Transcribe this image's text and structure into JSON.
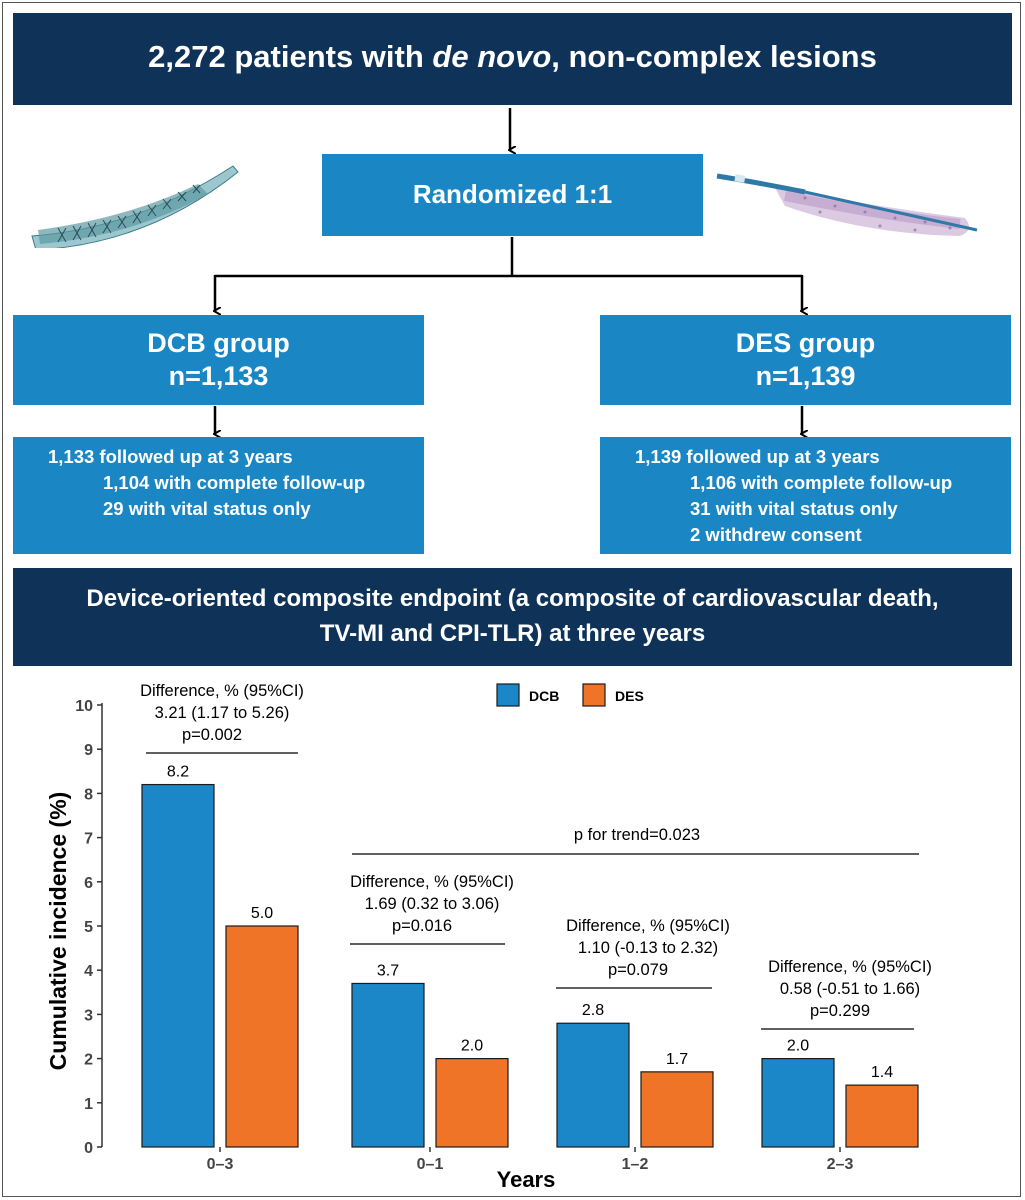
{
  "header": {
    "title_pre": "2,272 patients with ",
    "title_em": "de novo",
    "title_post": ", non-complex lesions"
  },
  "randomized": "Randomized 1:1",
  "groups": {
    "dcb": {
      "name": "DCB group",
      "n": "n=1,133",
      "lines": [
        "1,133 followed up at 3 years",
        "1,104 with complete follow-up",
        "29 with vital status only"
      ]
    },
    "des": {
      "name": "DES group",
      "n": "n=1,139",
      "lines": [
        "1,139 followed up at 3 years",
        "1,106 with complete follow-up",
        "31 with vital status only",
        "2 withdrew consent"
      ]
    }
  },
  "endpoint": {
    "line1": "Device-oriented composite endpoint (a composite of cardiovascular death,",
    "line2": "TV-MI and CPI-TLR) at three years"
  },
  "colors": {
    "navy": "#0f3259",
    "box_blue": "#1a87c4",
    "dcb": "#1b87c9",
    "des": "#f07427"
  },
  "chart_data": {
    "type": "bar",
    "categories": [
      "0–3",
      "0–1",
      "1–2",
      "2–3"
    ],
    "series": [
      {
        "name": "DCB",
        "values": [
          8.2,
          3.7,
          2.8,
          2.0
        ]
      },
      {
        "name": "DES",
        "values": [
          5.0,
          2.0,
          1.7,
          1.4
        ]
      }
    ],
    "value_labels": {
      "DCB": [
        "8.2",
        "3.7",
        "2.8",
        "2.0"
      ],
      "DES": [
        "5.0",
        "2.0",
        "1.7",
        "1.4"
      ]
    },
    "xlabel": "Years",
    "ylabel": "Cumulative incidence (%)",
    "ylim": [
      0,
      10
    ],
    "yticks": [
      0,
      1,
      2,
      3,
      4,
      5,
      6,
      7,
      8,
      9,
      10
    ],
    "legend": "top-center",
    "annotations": [
      {
        "category": "0–3",
        "lines": [
          "Difference, % (95%CI)",
          "3.21 (1.17 to 5.26)",
          "p=0.002"
        ]
      },
      {
        "category": "0–1",
        "lines": [
          "Difference, % (95%CI)",
          "1.69 (0.32 to 3.06)",
          "p=0.016"
        ]
      },
      {
        "category": "1–2",
        "lines": [
          "Difference, % (95%CI)",
          "1.10 (-0.13 to 2.32)",
          "p=0.079"
        ]
      },
      {
        "category": "2–3",
        "lines": [
          "Difference, % (95%CI)",
          "0.58 (-0.51 to 1.66)",
          "p=0.299"
        ]
      }
    ],
    "trend_label": "p for trend=0.023"
  }
}
